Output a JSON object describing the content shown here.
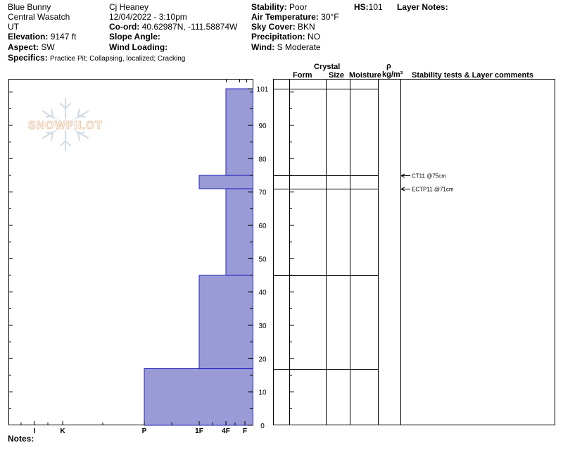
{
  "header": {
    "location": "Blue Bunny",
    "range": "Central Wasatch",
    "state": "UT",
    "elevation_label": "Elevation:",
    "elevation_value": "9147 ft",
    "aspect_label": "Aspect:",
    "aspect_value": "SW",
    "specifics_label": "Specifics:",
    "specifics_value": "Practice Pit; Collapsing, localized; Cracking",
    "observer": "Cj Heaney",
    "datetime": "12/04/2022 - 3:10pm",
    "coord_label": "Co-ord:",
    "coord_value": "40.62987N, -111.58874W",
    "slope_label": "Slope Angle:",
    "slope_value": "",
    "wind_loading_label": "Wind Loading:",
    "wind_loading_value": "",
    "stability_label": "Stability:",
    "stability_value": "Poor",
    "air_temp_label": "Air Temperature:",
    "air_temp_value": "30°F",
    "sky_label": "Sky Cover:",
    "sky_value": "BKN",
    "precip_label": "Precipitation:",
    "precip_value": "NO",
    "wind_label": "Wind:",
    "wind_value": "S Moderate",
    "hs_label": "HS:",
    "hs_value": "101",
    "layer_notes_label": "Layer Notes:"
  },
  "columns": {
    "crystal": "Crystal",
    "form": "Form",
    "size": "Size",
    "moisture": "Moisture",
    "rho": "ρ",
    "density_unit": "kg/m³",
    "stability": "Stability tests & Layer comments"
  },
  "notes_label": "Notes:",
  "logo_text": "SNOWPILOT",
  "chart_data": {
    "type": "snow-profile",
    "hs": 101,
    "y_ticks": [
      0,
      10,
      20,
      30,
      40,
      50,
      60,
      70,
      80,
      90,
      101
    ],
    "ylim": [
      0,
      101
    ],
    "hardness_scale": [
      "F",
      "4F",
      "1F",
      "P",
      "K",
      "I"
    ],
    "hardness_labels": [
      "I",
      "K",
      "P",
      "1F",
      "4F",
      "F"
    ],
    "layers": [
      {
        "bottom": 0,
        "top": 17,
        "hardness": "P"
      },
      {
        "bottom": 17,
        "top": 45,
        "hardness": "1F"
      },
      {
        "bottom": 45,
        "top": 71,
        "hardness": "4F"
      },
      {
        "bottom": 71,
        "top": 75,
        "hardness": "1F"
      },
      {
        "bottom": 75,
        "top": 101,
        "hardness": "4F"
      }
    ],
    "layer_boundaries": [
      17,
      45,
      71,
      75,
      101
    ],
    "tests": [
      {
        "height": 75,
        "label": "CT11 @75cm"
      },
      {
        "height": 71,
        "label": "ECTP11 @71cm"
      }
    ],
    "colors": {
      "fill": "#9a9ad6",
      "stroke": "#2424c0"
    }
  }
}
